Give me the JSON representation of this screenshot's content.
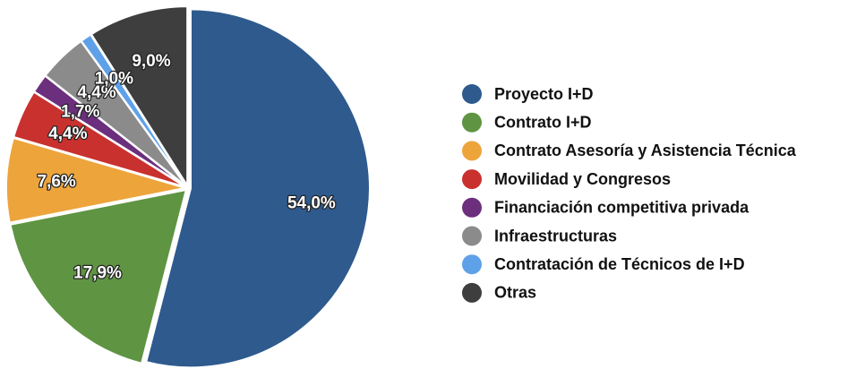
{
  "chart_data": {
    "type": "pie",
    "categories": [
      "Proyecto I+D",
      "Contrato I+D",
      "Contrato Asesoría y Asistencia Técnica",
      "Movilidad y Congresos",
      "Financiación competitiva privada",
      "Infraestructuras",
      "Contratación de Técnicos de I+D",
      "Otras"
    ],
    "values": [
      54.0,
      17.9,
      7.6,
      4.4,
      1.7,
      4.4,
      1.0,
      9.0
    ],
    "value_labels": [
      "54,0%",
      "17,9%",
      "7,6%",
      "4,4%",
      "1,7%",
      "4,4%",
      "1,0%",
      "9,0%"
    ],
    "colors": [
      "#2e5a8e",
      "#5f9442",
      "#eda43b",
      "#c9312f",
      "#6b2f7d",
      "#8b8b8b",
      "#5fa1e8",
      "#3e3e3e"
    ],
    "legend": "right"
  }
}
